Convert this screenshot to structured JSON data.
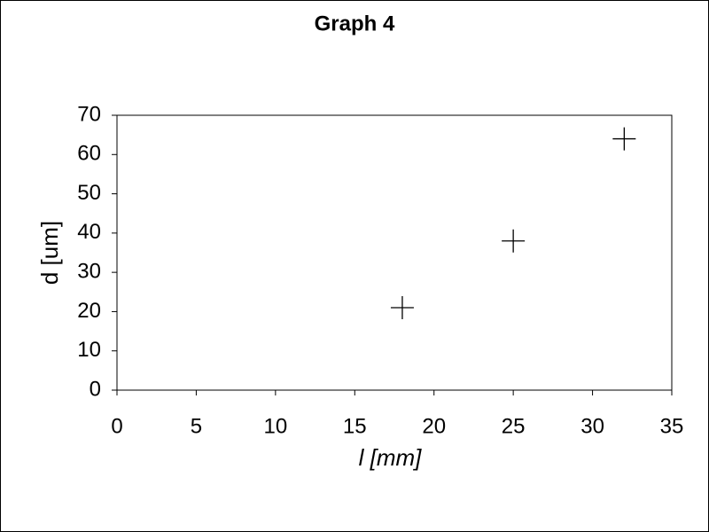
{
  "chart_data": {
    "type": "scatter",
    "title": "Graph 4",
    "x_label": "l [mm]",
    "y_label": "d [um]",
    "x": [
      18,
      25,
      32
    ],
    "values": [
      21,
      38,
      64
    ],
    "color": "#000000",
    "marker": "plus",
    "xlim": [
      0,
      35
    ],
    "xticks": [
      0,
      5,
      10,
      15,
      20,
      25,
      30,
      35
    ],
    "ylim": [
      0,
      70
    ],
    "yticks": [
      0,
      10,
      20,
      30,
      40,
      50,
      60,
      70
    ],
    "grid": false
  }
}
